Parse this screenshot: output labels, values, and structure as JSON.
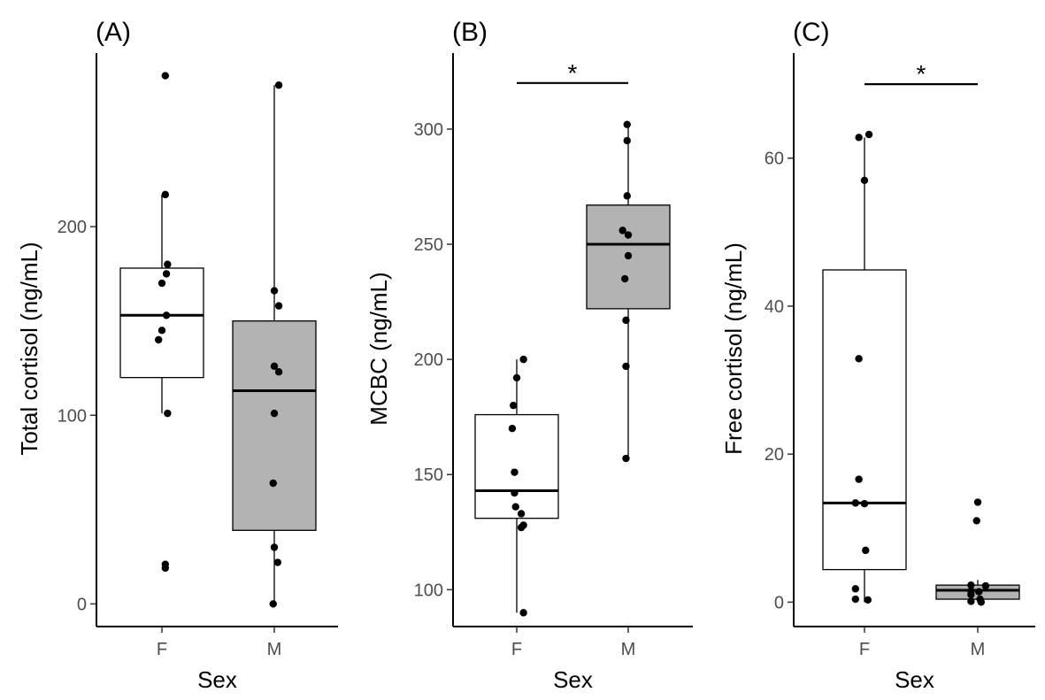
{
  "chart_data": [
    {
      "type": "box",
      "title": "(A)",
      "xlabel": "Sex",
      "ylabel": "Total cortisol (ng/mL)",
      "categories": [
        "F",
        "M"
      ],
      "ylim": [
        -12,
        292
      ],
      "yticks": [
        0,
        100,
        200
      ],
      "significance": null,
      "boxes": [
        {
          "category": "F",
          "fill": "#ffffff",
          "whisker_low": 101,
          "q1": 120,
          "median": 153,
          "q3": 178,
          "whisker_high": 217
        },
        {
          "category": "M",
          "fill": "#b3b3b3",
          "whisker_low": 0,
          "q1": 39,
          "median": 113,
          "q3": 150,
          "whisker_high": 275
        }
      ],
      "points": [
        {
          "category": "F",
          "offset": 0.03,
          "y": 280
        },
        {
          "category": "F",
          "offset": 0.03,
          "y": 217
        },
        {
          "category": "F",
          "offset": 0.05,
          "y": 180
        },
        {
          "category": "F",
          "offset": 0.04,
          "y": 175
        },
        {
          "category": "F",
          "offset": 0.0,
          "y": 170
        },
        {
          "category": "F",
          "offset": 0.04,
          "y": 153
        },
        {
          "category": "F",
          "offset": 0.0,
          "y": 145
        },
        {
          "category": "F",
          "offset": -0.03,
          "y": 140
        },
        {
          "category": "F",
          "offset": 0.05,
          "y": 101
        },
        {
          "category": "F",
          "offset": 0.03,
          "y": 21
        },
        {
          "category": "F",
          "offset": 0.03,
          "y": 19
        },
        {
          "category": "M",
          "offset": 0.04,
          "y": 275
        },
        {
          "category": "M",
          "offset": 0.0,
          "y": 166
        },
        {
          "category": "M",
          "offset": 0.04,
          "y": 158
        },
        {
          "category": "M",
          "offset": 0.0,
          "y": 126
        },
        {
          "category": "M",
          "offset": 0.04,
          "y": 123
        },
        {
          "category": "M",
          "offset": 0.0,
          "y": 101
        },
        {
          "category": "M",
          "offset": -0.01,
          "y": 64
        },
        {
          "category": "M",
          "offset": 0.0,
          "y": 30
        },
        {
          "category": "M",
          "offset": 0.03,
          "y": 22
        },
        {
          "category": "M",
          "offset": -0.01,
          "y": 0
        }
      ]
    },
    {
      "type": "box",
      "title": "(B)",
      "xlabel": "Sex",
      "ylabel": "MCBC (ng/mL)",
      "categories": [
        "F",
        "M"
      ],
      "ylim": [
        84,
        333
      ],
      "yticks": [
        100,
        150,
        200,
        250,
        300
      ],
      "significance": {
        "label": "*",
        "y": 320
      },
      "boxes": [
        {
          "category": "F",
          "fill": "#ffffff",
          "whisker_low": 90,
          "q1": 131,
          "median": 143,
          "q3": 176,
          "whisker_high": 200
        },
        {
          "category": "M",
          "fill": "#b3b3b3",
          "whisker_low": 157,
          "q1": 222,
          "median": 250,
          "q3": 267,
          "whisker_high": 302
        }
      ],
      "points": [
        {
          "category": "F",
          "offset": 0.06,
          "y": 200
        },
        {
          "category": "F",
          "offset": 0.0,
          "y": 192
        },
        {
          "category": "F",
          "offset": -0.03,
          "y": 180
        },
        {
          "category": "F",
          "offset": -0.04,
          "y": 170
        },
        {
          "category": "F",
          "offset": -0.02,
          "y": 151
        },
        {
          "category": "F",
          "offset": -0.02,
          "y": 142
        },
        {
          "category": "F",
          "offset": -0.01,
          "y": 136
        },
        {
          "category": "F",
          "offset": 0.04,
          "y": 133
        },
        {
          "category": "F",
          "offset": 0.06,
          "y": 128
        },
        {
          "category": "F",
          "offset": 0.04,
          "y": 127
        },
        {
          "category": "F",
          "offset": 0.06,
          "y": 90
        },
        {
          "category": "M",
          "offset": -0.01,
          "y": 302
        },
        {
          "category": "M",
          "offset": -0.01,
          "y": 295
        },
        {
          "category": "M",
          "offset": -0.01,
          "y": 271
        },
        {
          "category": "M",
          "offset": -0.05,
          "y": 256
        },
        {
          "category": "M",
          "offset": 0.0,
          "y": 254
        },
        {
          "category": "M",
          "offset": 0.0,
          "y": 245
        },
        {
          "category": "M",
          "offset": -0.03,
          "y": 235
        },
        {
          "category": "M",
          "offset": -0.02,
          "y": 217
        },
        {
          "category": "M",
          "offset": -0.02,
          "y": 197
        },
        {
          "category": "M",
          "offset": -0.02,
          "y": 157
        }
      ]
    },
    {
      "type": "box",
      "title": "(C)",
      "xlabel": "Sex",
      "ylabel": "Free cortisol (ng/mL)",
      "categories": [
        "F",
        "M"
      ],
      "ylim": [
        -3.3,
        74.2
      ],
      "yticks": [
        0,
        20,
        40,
        60
      ],
      "significance": {
        "label": "*",
        "y": 70
      },
      "boxes": [
        {
          "category": "F",
          "fill": "#ffffff",
          "whisker_low": 0,
          "q1": 4.4,
          "median": 13.4,
          "q3": 44.9,
          "whisker_high": 62.8
        },
        {
          "category": "M",
          "fill": "#b3b3b3",
          "whisker_low": 0,
          "q1": 0.4,
          "median": 1.6,
          "q3": 2.3,
          "whisker_high": 3
        }
      ],
      "points": [
        {
          "category": "F",
          "offset": -0.05,
          "y": 62.8
        },
        {
          "category": "F",
          "offset": 0.04,
          "y": 63.2
        },
        {
          "category": "F",
          "offset": 0.0,
          "y": 57
        },
        {
          "category": "F",
          "offset": -0.05,
          "y": 32.9
        },
        {
          "category": "F",
          "offset": -0.05,
          "y": 16.6
        },
        {
          "category": "F",
          "offset": -0.08,
          "y": 13.4
        },
        {
          "category": "F",
          "offset": 0.0,
          "y": 13.3
        },
        {
          "category": "F",
          "offset": 0.01,
          "y": 7
        },
        {
          "category": "F",
          "offset": -0.08,
          "y": 1.8
        },
        {
          "category": "F",
          "offset": -0.08,
          "y": 0.4
        },
        {
          "category": "F",
          "offset": 0.03,
          "y": 0.3
        },
        {
          "category": "M",
          "offset": 0.0,
          "y": 13.5
        },
        {
          "category": "M",
          "offset": -0.01,
          "y": 11
        },
        {
          "category": "M",
          "offset": -0.06,
          "y": 2.3
        },
        {
          "category": "M",
          "offset": 0.07,
          "y": 2.2
        },
        {
          "category": "M",
          "offset": -0.06,
          "y": 1.5
        },
        {
          "category": "M",
          "offset": 0.01,
          "y": 1.4
        },
        {
          "category": "M",
          "offset": -0.06,
          "y": 1
        },
        {
          "category": "M",
          "offset": 0.02,
          "y": 0.4
        },
        {
          "category": "M",
          "offset": -0.06,
          "y": 0.1
        },
        {
          "category": "M",
          "offset": 0.03,
          "y": 0
        }
      ]
    }
  ],
  "colors": {
    "box_fill_F": "#ffffff",
    "box_fill_M": "#b3b3b3",
    "point": "#000000",
    "tick_label": "#4d4d4d"
  }
}
